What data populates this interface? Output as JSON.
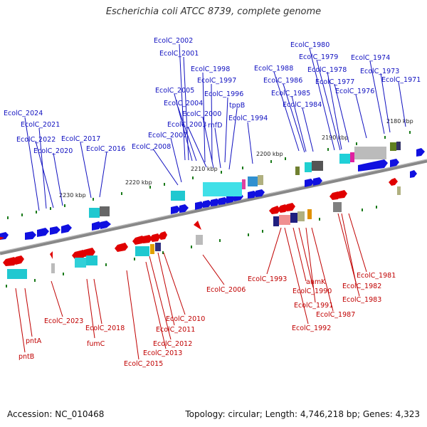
{
  "title": "Escherichia coli ATCC 8739, complete genome",
  "footer": {
    "accession": "Accession: NC_010468",
    "summary": "Topology: circular; Length: 4,746,218 bp; Genes: 4,323"
  },
  "colors": {
    "forward": "#1010c0",
    "reverse": "#c00000",
    "backbone": "#888888"
  },
  "ticks": [
    "2230 kbp",
    "2220 kbp",
    "2210 kbp",
    "2200 kbp",
    "2190 kbp",
    "2180 kbp"
  ],
  "forward_labels": [
    "EcolC_2002",
    "EcolC_2001",
    "EcolC_1998",
    "EcolC_1997",
    "EcolC_2005",
    "EcolC_1996",
    "EcolC_2004",
    "tppB",
    "EcolC_2000",
    "EcolC_2003",
    "rnfD",
    "EcolC_1994",
    "EcolC_2007",
    "EcolC_2008",
    "EcolC_2017",
    "EcolC_2016",
    "EcolC_2024",
    "EcolC_2021",
    "EcolC_2022",
    "EcolC_2020",
    "EcolC_1980",
    "EcolC_1979",
    "EcolC_1974",
    "EcolC_1988",
    "EcolC_1978",
    "EcolC_1973",
    "EcolC_1986",
    "EcolC_1977",
    "EcolC_1971",
    "EcolC_1985",
    "EcolC_1976",
    "EcolC_1984"
  ],
  "reverse_labels": [
    "EcolC_1993",
    "anmK",
    "EcolC_1990",
    "EcolC_1991",
    "EcolC_1987",
    "EcolC_1992",
    "EcolC_1981",
    "EcolC_1982",
    "EcolC_1983",
    "EcolC_2006",
    "EcolC_2010",
    "EcolC_2011",
    "EcolC_2012",
    "EcolC_2013",
    "EcolC_2015",
    "EcolC_2023",
    "EcolC_2018",
    "fumC",
    "pntA",
    "pntB"
  ]
}
